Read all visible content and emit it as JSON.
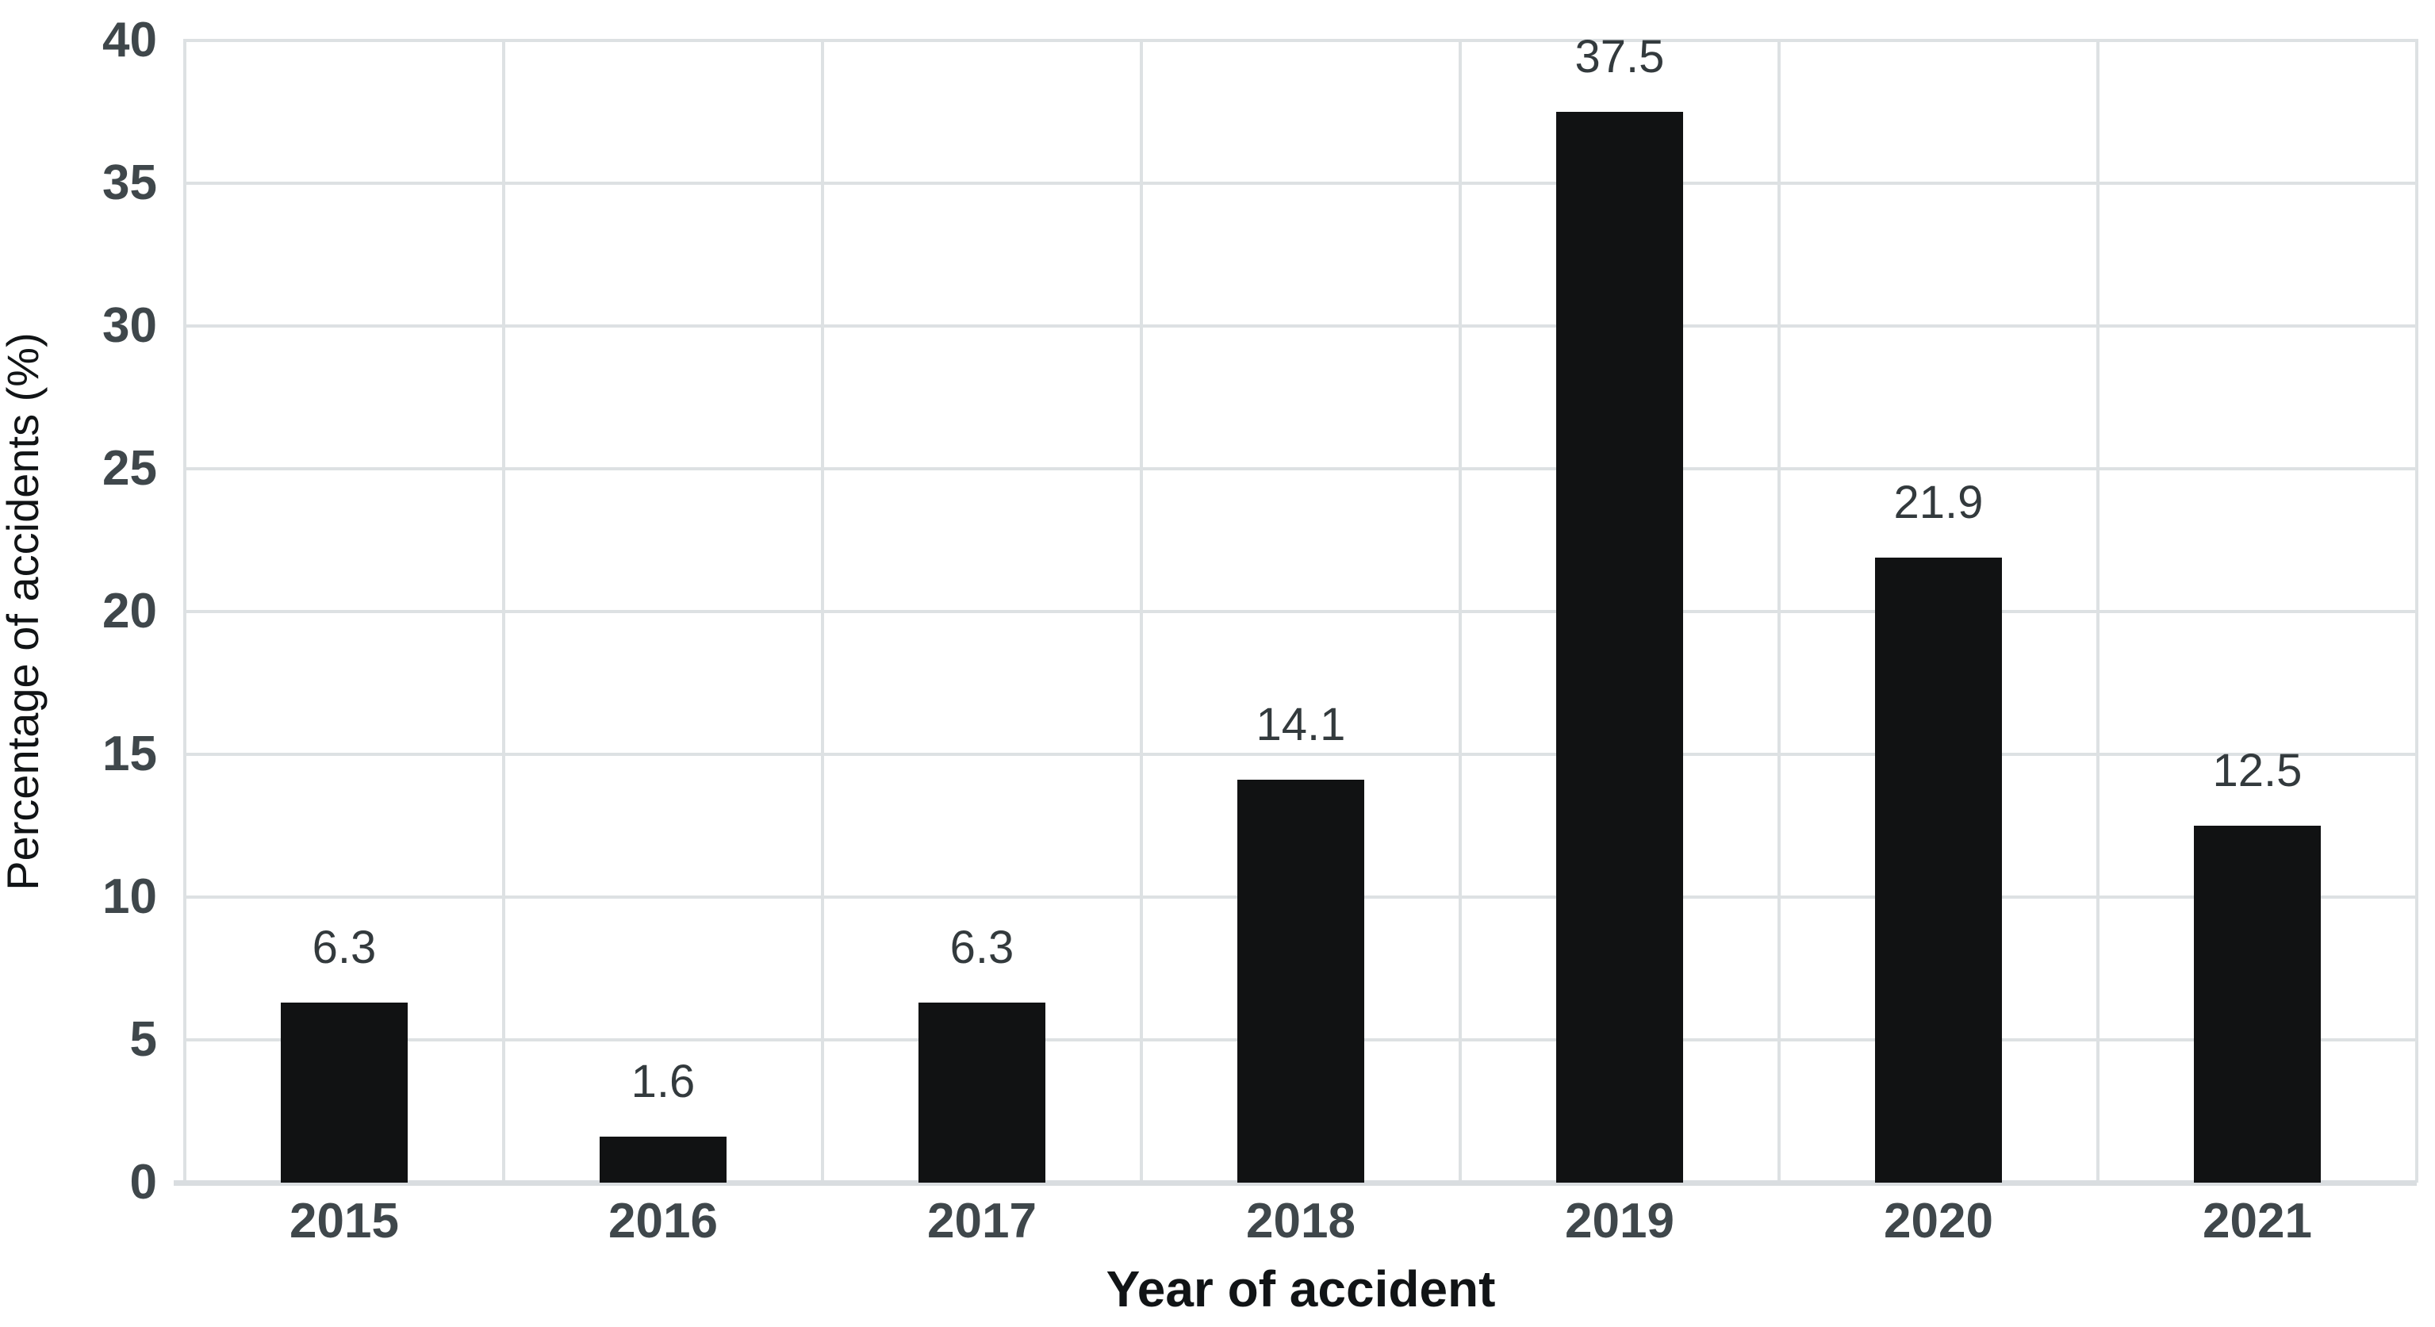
{
  "chart_data": {
    "type": "bar",
    "title": "",
    "categories": [
      "2015",
      "2016",
      "2017",
      "2018",
      "2019",
      "2020",
      "2021"
    ],
    "values": [
      6.3,
      1.6,
      6.3,
      14.1,
      37.5,
      21.9,
      12.5
    ],
    "data_labels": [
      "6.3",
      "1.6",
      "6.3",
      "14.1",
      "37.5",
      "21.9",
      "12.5"
    ],
    "xlabel": "Year of accident",
    "ylabel": "Percentage of accidents (%)",
    "ylim": [
      0,
      40
    ],
    "ytick_step": 5,
    "yticks": [
      "0",
      "5",
      "10",
      "15",
      "20",
      "25",
      "30",
      "35",
      "40"
    ],
    "grid": "horizontal and vertical gridlines, light grey",
    "legend_position": "none",
    "series_name": "Percentage of accidents",
    "colors": {
      "background": "#ffffff",
      "bar": "#111213",
      "gridline": "#dde1e3",
      "axis_line": "#d9dde0",
      "tick_label": "#3f474b",
      "data_label": "#333a3d",
      "axis_title": "#111416"
    }
  }
}
